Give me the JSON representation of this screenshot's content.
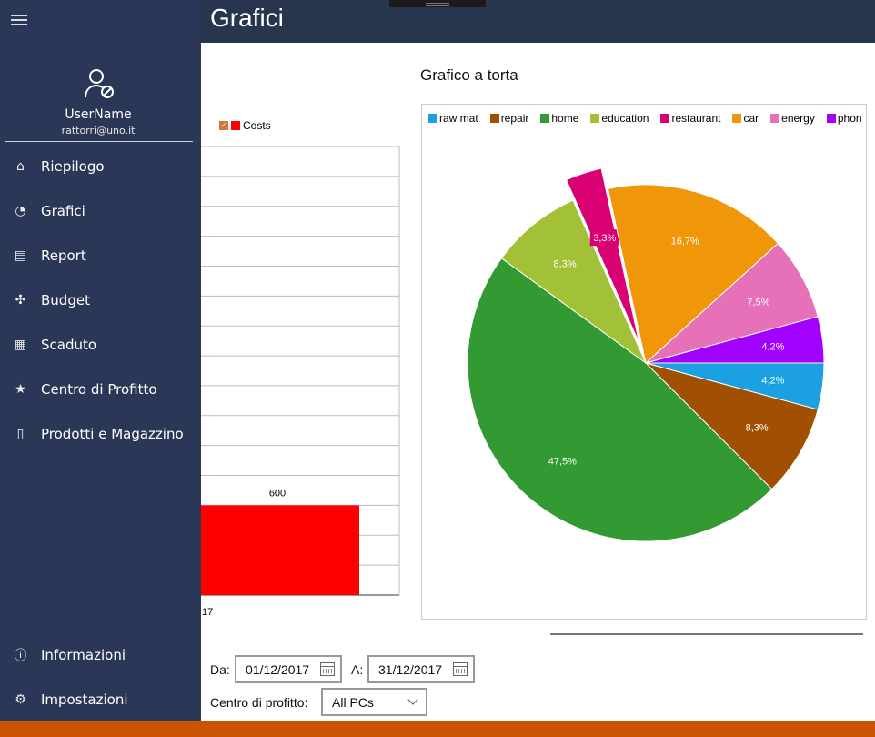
{
  "header": {
    "title": "Grafici"
  },
  "user": {
    "name": "UserName",
    "email": "rattorri@uno.it"
  },
  "nav": [
    {
      "label": "Riepilogo",
      "icon": "home-icon",
      "glyph": "⌂"
    },
    {
      "label": "Grafici",
      "icon": "pie-chart-icon",
      "glyph": "◔"
    },
    {
      "label": "Report",
      "icon": "book-icon",
      "glyph": "▤"
    },
    {
      "label": "Budget",
      "icon": "puzzle-icon",
      "glyph": "✣"
    },
    {
      "label": "Scaduto",
      "icon": "calendar-clock-icon",
      "glyph": "▦"
    },
    {
      "label": "Centro di Profitto",
      "icon": "star-icon",
      "glyph": "★"
    },
    {
      "label": "Prodotti e Magazzino",
      "icon": "tablet-icon",
      "glyph": "▯"
    }
  ],
  "nav_bottom": [
    {
      "label": "Informazioni",
      "icon": "info-icon",
      "glyph": "ⓘ"
    },
    {
      "label": "Impostazioni",
      "icon": "gear-icon",
      "glyph": "⚙"
    }
  ],
  "bar_chart": {
    "legend": "Costs",
    "x_label_partial": "17"
  },
  "chart_data": [
    {
      "type": "bar",
      "title": "",
      "series": [
        {
          "name": "Costs",
          "color": "#ff0000",
          "values": [
            600
          ]
        }
      ],
      "categories": [
        "17"
      ],
      "data_labels": [
        "600"
      ],
      "ylim": [
        0,
        3000
      ],
      "ystep": 200,
      "grid": true
    },
    {
      "type": "pie",
      "title": "Grafico a torta",
      "legend_position": "top",
      "slices": [
        {
          "name": "raw mat",
          "value": 4.2,
          "label": "4,2%",
          "color": "#1ba1e2"
        },
        {
          "name": "repair",
          "value": 8.3,
          "label": "8,3%",
          "color": "#a05000"
        },
        {
          "name": "home",
          "value": 47.5,
          "label": "47,5%",
          "color": "#339933"
        },
        {
          "name": "education",
          "value": 8.3,
          "label": "8,3%",
          "color": "#a2c139"
        },
        {
          "name": "restaurant",
          "value": 3.3,
          "label": "3,3%",
          "color": "#d80073",
          "exploded": true
        },
        {
          "name": "car",
          "value": 16.7,
          "label": "16,7%",
          "color": "#f09609"
        },
        {
          "name": "energy",
          "value": 7.5,
          "label": "7,5%",
          "color": "#e671b8"
        },
        {
          "name": "phon",
          "value": 4.2,
          "label": "4,2%",
          "color": "#a200ff"
        }
      ]
    }
  ],
  "filters": {
    "from_label": "Da:",
    "from_value": "01/12/2017",
    "to_label": "A:",
    "to_value": "31/12/2017",
    "pc_label": "Centro di profitto:",
    "pc_value": "All PCs"
  }
}
